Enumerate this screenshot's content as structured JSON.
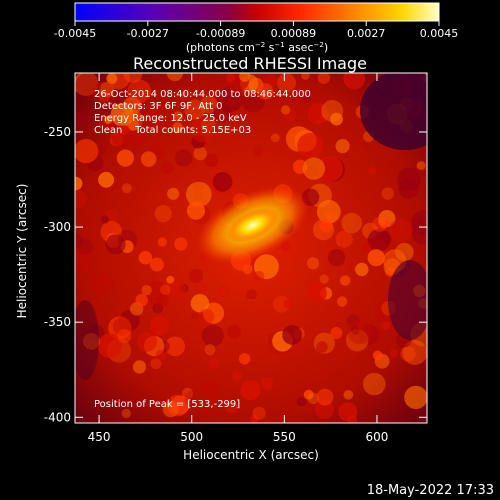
{
  "chart_data": {
    "type": "heatmap",
    "title": "Reconstructed RHESSI Image",
    "xlabel": "Heliocentric X (arcsec)",
    "ylabel": "Heliocentric Y (arcsec)",
    "xlim": [
      437,
      627
    ],
    "ylim": [
      -403,
      -219
    ],
    "x_ticks": [
      450,
      500,
      550,
      600
    ],
    "y_ticks": [
      -400,
      -350,
      -300,
      -250
    ],
    "colorbar": {
      "ticks": [
        "-0.0045",
        "-0.0027",
        "-0.00089",
        "0.00089",
        "0.0027",
        "0.0045"
      ],
      "min": -0.0045,
      "max": 0.0045,
      "units_label": "(photons cm<sup>-2</sup> s<sup>-1</sup> asec<sup>-2</sup>)"
    },
    "annotations": [
      "26-Oct-2014 08:40:44.000 to 08:46:44.000",
      "Detectors: 3F 6F 9F, Att 0",
      "Energy Range: 12.0 - 25.0 keV",
      "Clean    Total counts: 5.15E+03"
    ],
    "peak_label": "Position of Peak = [533,-299]",
    "peak": {
      "x": 533,
      "y": -299
    },
    "timestamp": "18-May-2022 17:33"
  },
  "colors": {
    "background": "#000000",
    "text": "#ffffff"
  }
}
